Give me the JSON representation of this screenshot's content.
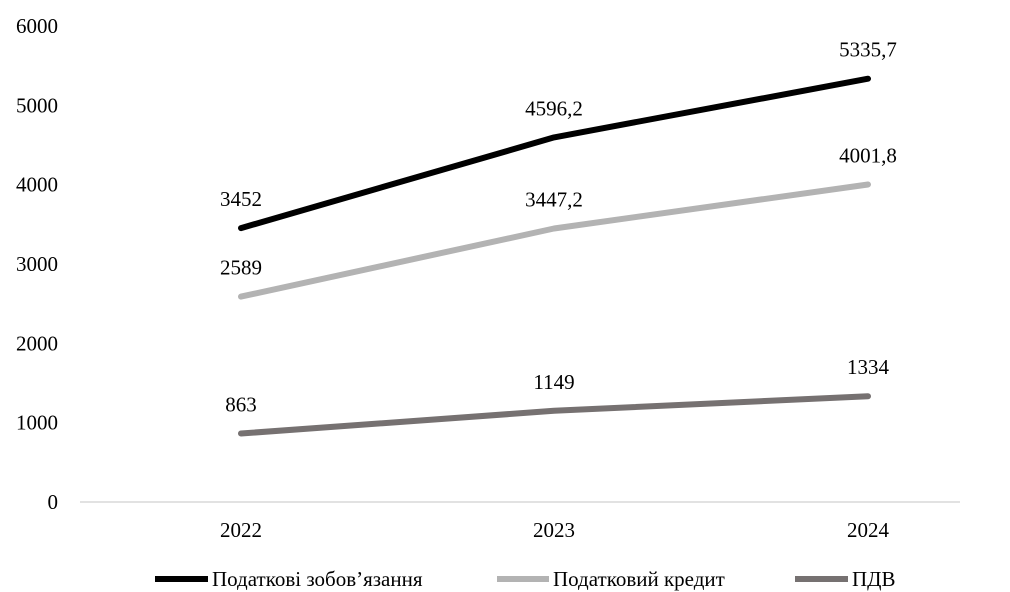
{
  "chart_data": {
    "type": "line",
    "title": "",
    "xlabel": "",
    "ylabel": "",
    "categories": [
      "2022",
      "2023",
      "2024"
    ],
    "ylim": [
      0,
      6000
    ],
    "yticks": [
      "0",
      "1000",
      "2000",
      "3000",
      "4000",
      "5000",
      "6000"
    ],
    "grid": false,
    "legend_position": "bottom",
    "series": [
      {
        "name": "Податкові зобов’язання",
        "values": [
          3452,
          4596.2,
          5335.7
        ],
        "labels": [
          "3452",
          "4596,2",
          "5335,7"
        ],
        "color": "#000000"
      },
      {
        "name": "Податковий кредит",
        "values": [
          2589,
          3447.2,
          4001.8
        ],
        "labels": [
          "2589",
          "3447,2",
          "4001,8"
        ],
        "color": "#b3b3b3"
      },
      {
        "name": "ПДВ",
        "values": [
          863,
          1149,
          1334
        ],
        "labels": [
          "863",
          "1149",
          "1334"
        ],
        "color": "#767171"
      }
    ]
  }
}
